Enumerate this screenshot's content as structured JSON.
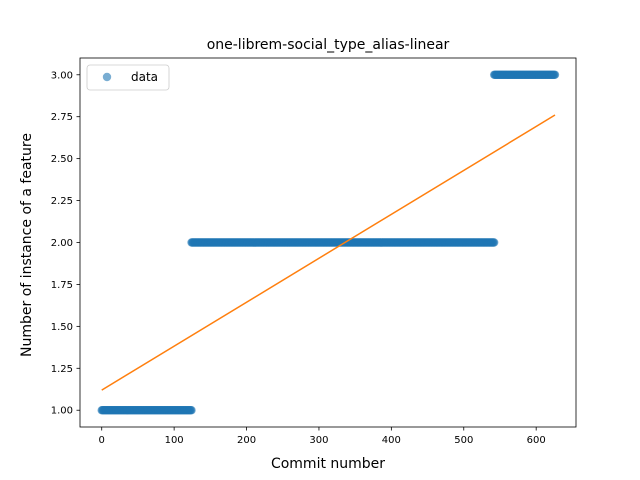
{
  "chart_data": {
    "type": "scatter",
    "title": "one-librem-social_type_alias-linear",
    "xlabel": "Commit number",
    "ylabel": "Number of instance of a feature",
    "xlim": [
      -30,
      655
    ],
    "ylim": [
      0.9,
      3.1
    ],
    "xticks": [
      0,
      100,
      200,
      300,
      400,
      500,
      600
    ],
    "yticks": [
      1.0,
      1.25,
      1.5,
      1.75,
      2.0,
      2.25,
      2.5,
      2.75,
      3.0
    ],
    "xtick_labels": [
      "0",
      "100",
      "200",
      "300",
      "400",
      "500",
      "600"
    ],
    "ytick_labels": [
      "1.00",
      "1.25",
      "1.50",
      "1.75",
      "2.00",
      "2.25",
      "2.50",
      "2.75",
      "3.00"
    ],
    "grid": false,
    "legend": {
      "entries": [
        "data"
      ],
      "placement": "top-left"
    },
    "series": [
      {
        "name": "data",
        "kind": "scatter",
        "color": "#1f77b4",
        "segments": [
          {
            "x_start": 0,
            "x_end": 124,
            "y": 1
          },
          {
            "x_start": 124,
            "x_end": 542,
            "y": 2
          },
          {
            "x_start": 542,
            "x_end": 626,
            "y": 3
          }
        ]
      },
      {
        "kind": "line",
        "color": "#ff7f0e",
        "x": [
          0,
          626
        ],
        "y": [
          1.12,
          2.76
        ]
      }
    ]
  }
}
